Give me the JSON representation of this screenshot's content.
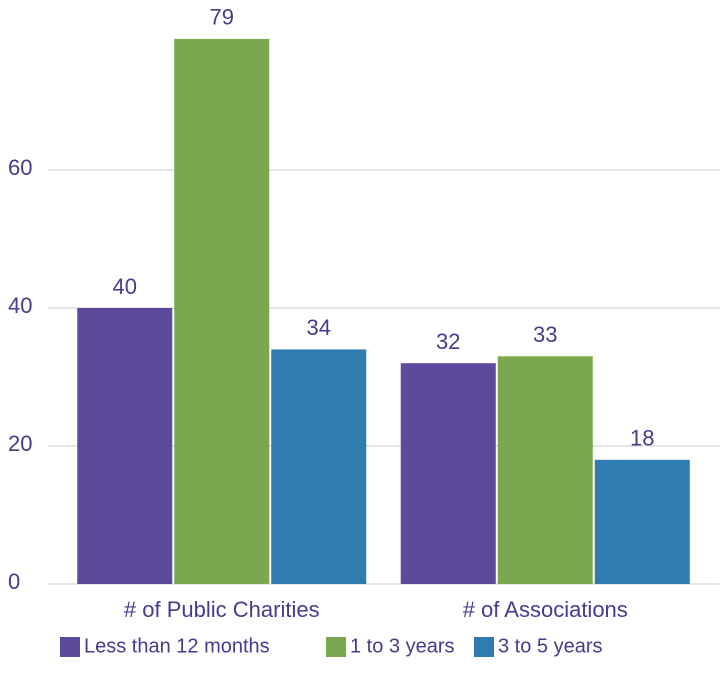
{
  "chart_data": {
    "type": "bar",
    "categories": [
      "# of Public Charities",
      "# of Associations"
    ],
    "series": [
      {
        "name": "Less than 12 months",
        "color": "#5e4a9c",
        "values": [
          40,
          32
        ]
      },
      {
        "name": "1 to 3 years",
        "color": "#7aa84f",
        "values": [
          79,
          33
        ]
      },
      {
        "name": "3 to 5 years",
        "color": "#2f7cb0",
        "values": [
          34,
          18
        ]
      }
    ],
    "ylim": [
      0,
      80
    ],
    "yticks": [
      0,
      20,
      40,
      60
    ],
    "grid": true,
    "legend": "bottom"
  }
}
